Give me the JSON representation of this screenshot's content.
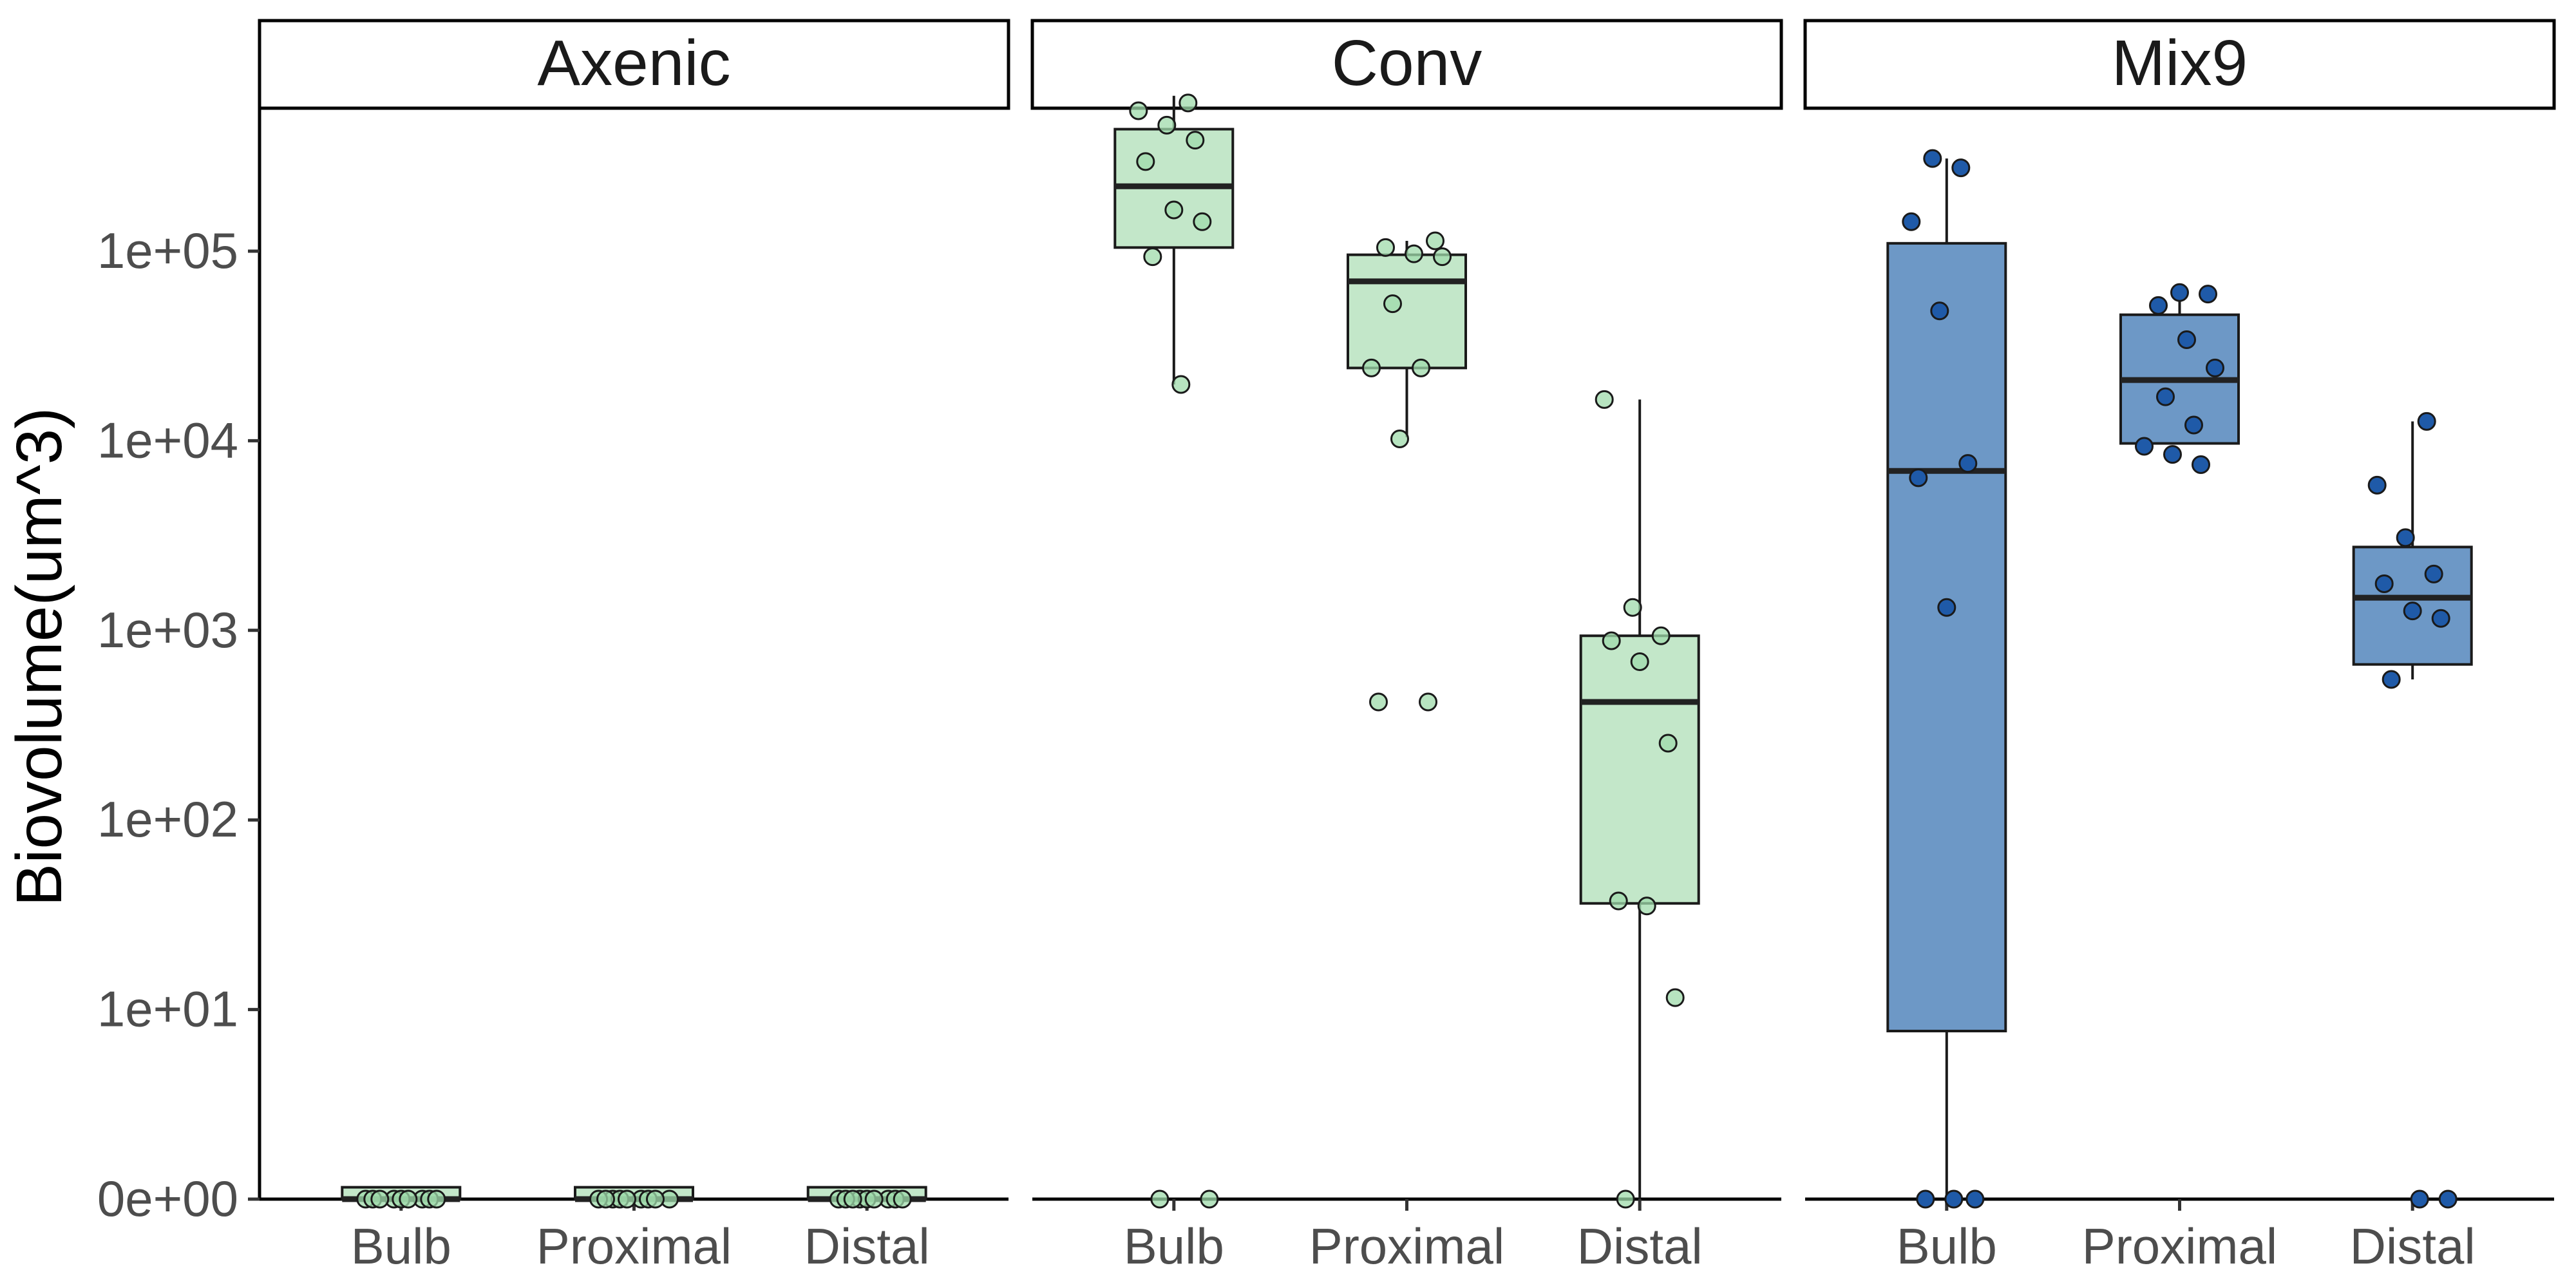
{
  "chart_data": {
    "type": "box",
    "ylabel": "Biovolume(um^3)",
    "xlabel": "",
    "y_scale": "pseudo-log10",
    "y_ticks": [
      0,
      10,
      100,
      1000,
      10000,
      100000
    ],
    "y_tick_labels": [
      "0e+00",
      "1e+01",
      "1e+02",
      "1e+03",
      "1e+04",
      "1e+05"
    ],
    "categories": [
      "Bulb",
      "Proximal",
      "Distal"
    ],
    "grid": false,
    "legend": "none",
    "panels": [
      {
        "title": "Axenic",
        "fill": "#c3e7c9",
        "point_fill": "#9fdbab",
        "boxes": [
          {
            "category": "Bulb",
            "min": 0,
            "q1": 0,
            "median": 0,
            "q3": 0.05,
            "max": 0.05,
            "points": [
              0,
              0,
              0,
              0,
              0,
              0,
              0,
              0,
              0
            ]
          },
          {
            "category": "Proximal",
            "min": 0,
            "q1": 0,
            "median": 0,
            "q3": 0.05,
            "max": 0.05,
            "points": [
              0,
              0,
              0,
              0,
              0,
              0,
              0,
              0,
              0
            ]
          },
          {
            "category": "Distal",
            "min": 0,
            "q1": 0,
            "median": 0,
            "q3": 0.05,
            "max": 0.05,
            "points": [
              0,
              0,
              0,
              0,
              0,
              0,
              0,
              0,
              0
            ]
          }
        ]
      },
      {
        "title": "Conv",
        "fill": "#c3e7c9",
        "point_fill": "#9fdbab",
        "boxes": [
          {
            "category": "Bulb",
            "min": 18000,
            "q1": 95000,
            "median": 200000,
            "q3": 400000,
            "max": 600000,
            "points": [
              550000,
              500000,
              420000,
              350000,
              270000,
              150000,
              130000,
              85000,
              18000,
              0,
              0
            ]
          },
          {
            "category": "Proximal",
            "min": 9500,
            "q1": 22000,
            "median": 63000,
            "q3": 87000,
            "max": 103000,
            "points": [
              103000,
              95000,
              88000,
              85000,
              48000,
              22000,
              22000,
              9300,
              380,
              380
            ]
          },
          {
            "category": "Distal",
            "min": 0,
            "q1": 32,
            "median": 380,
            "q3": 850,
            "max": 15000,
            "points": [
              15000,
              1200,
              850,
              800,
              620,
              230,
              33,
              31,
              9.5,
              0
            ]
          }
        ]
      },
      {
        "title": "Mix9",
        "fill": "#6d98c6",
        "point_fill": "#1f5aa8",
        "boxes": [
          {
            "category": "Bulb",
            "min": 0,
            "q1": 6,
            "median": 6300,
            "q3": 100000,
            "max": 280000,
            "points": [
              280000,
              250000,
              130000,
              44000,
              6900,
              5800,
              1200,
              0,
              0,
              0
            ]
          },
          {
            "category": "Proximal",
            "min": 8800,
            "q1": 8800,
            "median": 19000,
            "q3": 42000,
            "max": 55000,
            "points": [
              55000,
              54000,
              47000,
              31000,
              22000,
              15500,
              11000,
              8500,
              7700,
              6800
            ]
          },
          {
            "category": "Distal",
            "min": 500,
            "q1": 600,
            "median": 1350,
            "q3": 2500,
            "max": 11500,
            "points": [
              11500,
              5300,
              2800,
              1800,
              1600,
              1150,
              1050,
              500,
              0,
              0
            ]
          }
        ]
      }
    ]
  }
}
